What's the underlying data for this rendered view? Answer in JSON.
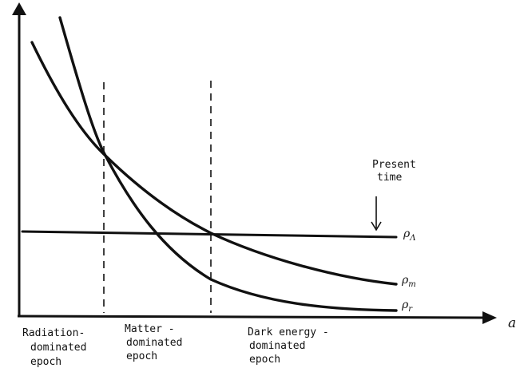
{
  "axes": {
    "x_label": "a"
  },
  "curves": {
    "lambda": {
      "label": "ρΛ",
      "base": "ρ",
      "sub": "Λ"
    },
    "matter": {
      "label": "ρm",
      "base": "ρ",
      "sub": "m"
    },
    "radiation": {
      "label": "ρr",
      "base": "ρ",
      "sub": "r"
    }
  },
  "present_time": {
    "lines": [
      "Present",
      "time"
    ]
  },
  "epochs": [
    {
      "name": "radiation",
      "lines": [
        "Radiation-",
        "dominated",
        "epoch"
      ]
    },
    {
      "name": "matter",
      "lines": [
        "Matter -",
        "dominated",
        "epoch"
      ]
    },
    {
      "name": "dark-energy",
      "lines": [
        "Dark energy -",
        "dominated",
        "epoch"
      ]
    }
  ],
  "colors": {
    "ink": "#111111",
    "background": "#ffffff"
  }
}
